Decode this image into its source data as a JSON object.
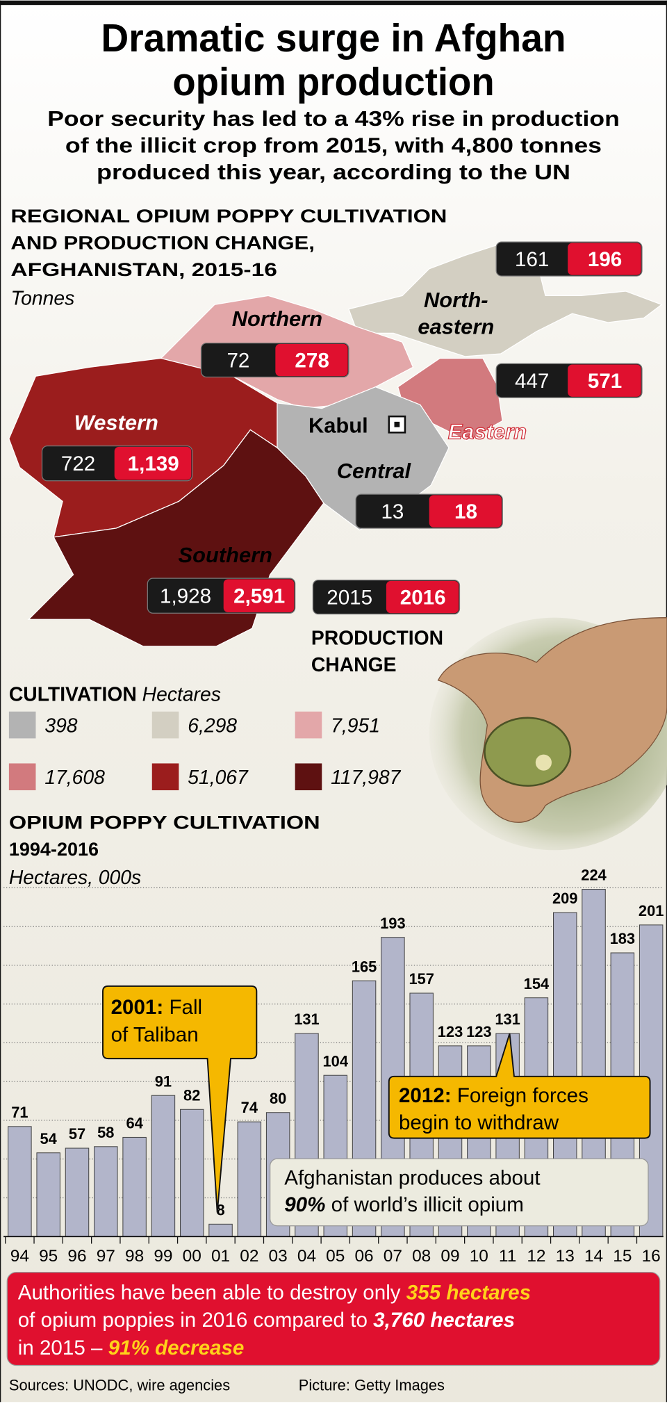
{
  "header": {
    "title_lines": [
      "Dramatic surge in Afghan",
      "opium production"
    ],
    "subtitle_lines": [
      "Poor security has led to a 43% rise in production",
      "of the illicit crop from 2015, with 4,800 tonnes",
      "produced this year, according to the UN"
    ]
  },
  "map": {
    "heading_lines": [
      "REGIONAL OPIUM POPPY CULTIVATION",
      "AND PRODUCTION CHANGE,",
      "AFGHANISTAN, 2015-16"
    ],
    "unit": "Tonnes",
    "regions": [
      {
        "name": "Northern",
        "v2015": "72",
        "v2016": "278"
      },
      {
        "name": "North-eastern",
        "name_lines": [
          "North-",
          "eastern"
        ],
        "v2015": "161",
        "v2016": "196"
      },
      {
        "name": "Western",
        "v2015": "722",
        "v2016": "1,139"
      },
      {
        "name": "Eastern",
        "v2015": "447",
        "v2016": "571"
      },
      {
        "name": "Central",
        "v2015": "13",
        "v2016": "18"
      },
      {
        "name": "Southern",
        "v2015": "1,928",
        "v2016": "2,591"
      }
    ],
    "capital": "Kabul",
    "key": {
      "y2015": "2015",
      "y2016": "2016",
      "caption_lines": [
        "PRODUCTION",
        "CHANGE"
      ]
    }
  },
  "legend": {
    "title": "CULTIVATION",
    "unit": "Hectares",
    "items": [
      {
        "label": "398",
        "color": "#b3b3b3"
      },
      {
        "label": "6,298",
        "color": "#d3cfc2"
      },
      {
        "label": "7,951",
        "color": "#e3a7a9"
      },
      {
        "label": "17,608",
        "color": "#d27a7e"
      },
      {
        "label": "51,067",
        "color": "#9b1d1d"
      },
      {
        "label": "117,987",
        "color": "#5e1111"
      }
    ]
  },
  "chart_data": {
    "type": "bar",
    "title_lines": [
      "OPIUM POPPY CULTIVATION",
      "1994-2016"
    ],
    "unit": "Hectares, 000s",
    "categories": [
      "94",
      "95",
      "96",
      "97",
      "98",
      "99",
      "00",
      "01",
      "02",
      "03",
      "04",
      "05",
      "06",
      "07",
      "08",
      "09",
      "10",
      "11",
      "12",
      "13",
      "14",
      "15",
      "16"
    ],
    "values": [
      71,
      54,
      57,
      58,
      64,
      91,
      82,
      8,
      74,
      80,
      131,
      104,
      165,
      193,
      157,
      123,
      123,
      131,
      154,
      209,
      224,
      183,
      201
    ],
    "color": "#b2b5ca",
    "ylim": [
      0,
      225
    ],
    "grid": true,
    "annotations": [
      {
        "bold": "2001:",
        "lines": [
          "Fall",
          "of Taliban"
        ]
      },
      {
        "bold": "2012:",
        "lines": [
          "Foreign forces",
          "begin to withdraw"
        ]
      }
    ],
    "note": {
      "line1": "Afghanistan produces about",
      "bold": "90%",
      "rest": "of world’s illicit opium"
    }
  },
  "callout": {
    "line1": [
      "Authorities have been able to destroy only",
      "355 hectares"
    ],
    "line2": [
      "of opium poppies in 2016 compared to",
      "3,760 hectares"
    ],
    "line3": [
      "in 2015 –",
      "91% decrease"
    ]
  },
  "footer": {
    "sources": "Sources: UNODC, wire agencies",
    "picture": "Picture: Getty Images"
  }
}
